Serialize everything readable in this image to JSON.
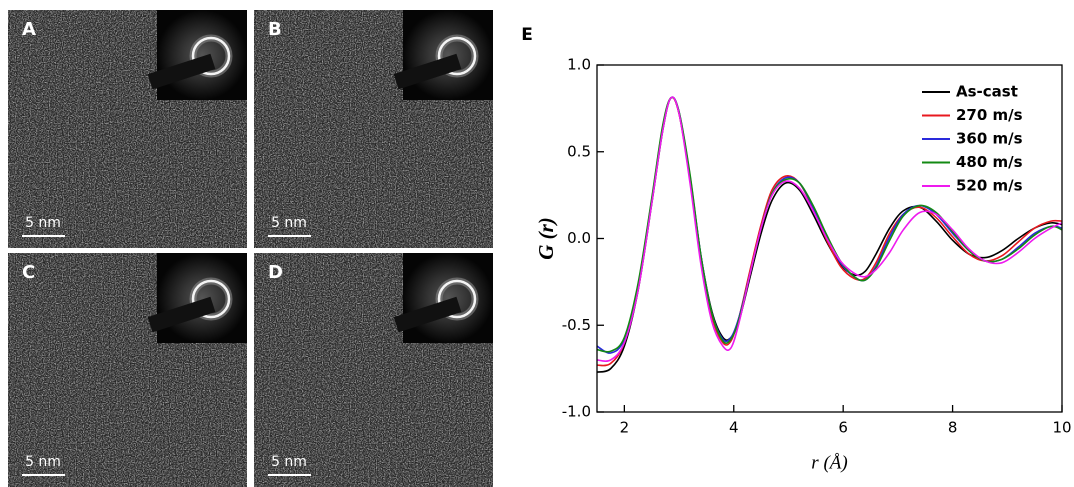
{
  "panels": [
    {
      "label": "A",
      "scale_bar": "5 nm"
    },
    {
      "label": "B",
      "scale_bar": "5 nm"
    },
    {
      "label": "C",
      "scale_bar": "5 nm"
    },
    {
      "label": "D",
      "scale_bar": "5 nm"
    }
  ],
  "chart_data": {
    "type": "line",
    "panel_label": "E",
    "x_label": "r (Å)",
    "y_label": "G (r)",
    "x": [
      1.5,
      1.75,
      2,
      2.25,
      2.5,
      2.7,
      2.85,
      3,
      3.2,
      3.4,
      3.6,
      3.8,
      3.95,
      4.1,
      4.3,
      4.5,
      4.7,
      4.95,
      5.2,
      5.45,
      5.7,
      5.95,
      6.2,
      6.4,
      6.6,
      6.85,
      7.1,
      7.4,
      7.7,
      8,
      8.3,
      8.6,
      8.9,
      9.2,
      9.5,
      9.8,
      10
    ],
    "series": [
      {
        "name": "As-cast",
        "color": "#000000",
        "values": [
          -0.77,
          -0.75,
          -0.62,
          -0.3,
          0.2,
          0.62,
          0.81,
          0.72,
          0.35,
          -0.1,
          -0.42,
          -0.57,
          -0.57,
          -0.47,
          -0.22,
          0.03,
          0.22,
          0.32,
          0.28,
          0.14,
          -0.02,
          -0.15,
          -0.21,
          -0.19,
          -0.09,
          0.06,
          0.16,
          0.18,
          0.1,
          -0.01,
          -0.09,
          -0.11,
          -0.07,
          0.0,
          0.06,
          0.09,
          0.08
        ]
      },
      {
        "name": "270 m/s",
        "color": "#e8181f",
        "values": [
          -0.73,
          -0.72,
          -0.6,
          -0.28,
          0.22,
          0.64,
          0.81,
          0.72,
          0.34,
          -0.12,
          -0.45,
          -0.6,
          -0.59,
          -0.45,
          -0.18,
          0.08,
          0.28,
          0.36,
          0.32,
          0.17,
          -0.01,
          -0.16,
          -0.23,
          -0.23,
          -0.14,
          0.03,
          0.14,
          0.18,
          0.12,
          0.01,
          -0.09,
          -0.13,
          -0.1,
          -0.02,
          0.06,
          0.1,
          0.1
        ]
      },
      {
        "name": "360 m/s",
        "color": "#2a2adb",
        "values": [
          -0.62,
          -0.66,
          -0.58,
          -0.27,
          0.22,
          0.64,
          0.81,
          0.73,
          0.36,
          -0.1,
          -0.43,
          -0.58,
          -0.57,
          -0.45,
          -0.2,
          0.06,
          0.26,
          0.35,
          0.32,
          0.18,
          0.01,
          -0.14,
          -0.22,
          -0.24,
          -0.16,
          0.01,
          0.14,
          0.19,
          0.14,
          0.03,
          -0.07,
          -0.13,
          -0.12,
          -0.05,
          0.03,
          0.07,
          0.06
        ]
      },
      {
        "name": "480 m/s",
        "color": "#138a13",
        "values": [
          -0.64,
          -0.65,
          -0.57,
          -0.26,
          0.23,
          0.65,
          0.81,
          0.73,
          0.37,
          -0.1,
          -0.43,
          -0.59,
          -0.58,
          -0.46,
          -0.2,
          0.06,
          0.26,
          0.34,
          0.32,
          0.19,
          0.02,
          -0.13,
          -0.22,
          -0.24,
          -0.17,
          -0.01,
          0.13,
          0.19,
          0.15,
          0.04,
          -0.07,
          -0.13,
          -0.12,
          -0.06,
          0.02,
          0.07,
          0.05
        ]
      },
      {
        "name": "520 m/s",
        "color": "#ee1aee",
        "values": [
          -0.7,
          -0.7,
          -0.6,
          -0.3,
          0.2,
          0.62,
          0.81,
          0.72,
          0.32,
          -0.15,
          -0.48,
          -0.62,
          -0.63,
          -0.48,
          -0.2,
          0.06,
          0.25,
          0.33,
          0.29,
          0.16,
          0.0,
          -0.13,
          -0.2,
          -0.22,
          -0.18,
          -0.08,
          0.05,
          0.15,
          0.14,
          0.05,
          -0.06,
          -0.13,
          -0.14,
          -0.08,
          0.0,
          0.06,
          0.09
        ]
      }
    ],
    "xlim": [
      1.5,
      10
    ],
    "ylim": [
      -1.0,
      1.0
    ],
    "xticks": [
      2,
      4,
      6,
      8,
      10
    ],
    "yticks": [
      {
        "value": -1.0,
        "label": "-1.0"
      },
      {
        "value": -0.5,
        "label": "-0.5"
      },
      {
        "value": 0.0,
        "label": "0.0"
      },
      {
        "value": 0.5,
        "label": "0.5"
      },
      {
        "value": 1.0,
        "label": "1.0"
      }
    ],
    "legend": "upper right"
  }
}
